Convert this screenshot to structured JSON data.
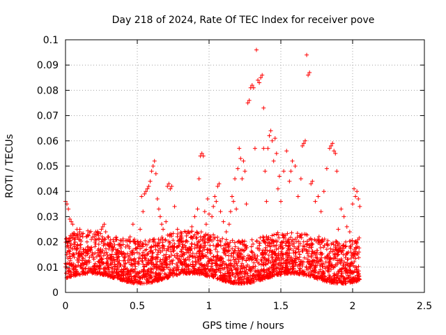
{
  "chart_data": {
    "type": "scatter",
    "title": "Day 218 of 2024, Rate Of TEC Index for receiver pove",
    "xlabel": "GPS time / hours",
    "ylabel": "ROTI / TECUs",
    "xlim": [
      0,
      2.5
    ],
    "ylim": [
      0,
      0.1
    ],
    "xticks": [
      "0",
      "0.5",
      "1",
      "1.5",
      "2",
      "2.5"
    ],
    "yticks": [
      "0",
      "0.01",
      "0.02",
      "0.03",
      "0.04",
      "0.05",
      "0.06",
      "0.07",
      "0.08",
      "0.09",
      "0.1"
    ],
    "grid": true,
    "marker": "plus",
    "color": "#ff0000",
    "series": [
      {
        "points": [
          [
            0.0,
            0.036
          ],
          [
            0.01,
            0.035
          ],
          [
            0.01,
            0.02
          ],
          [
            0.02,
            0.018
          ],
          [
            0.02,
            0.033
          ],
          [
            0.03,
            0.029
          ],
          [
            0.04,
            0.028
          ],
          [
            0.05,
            0.027
          ],
          [
            0.06,
            0.021
          ],
          [
            0.08,
            0.025
          ],
          [
            0.1,
            0.025
          ],
          [
            0.12,
            0.022
          ],
          [
            0.15,
            0.02
          ],
          [
            0.18,
            0.021
          ],
          [
            0.2,
            0.022
          ],
          [
            0.22,
            0.023
          ],
          [
            0.25,
            0.025
          ],
          [
            0.26,
            0.026
          ],
          [
            0.27,
            0.027
          ],
          [
            0.28,
            0.024
          ],
          [
            0.3,
            0.022
          ],
          [
            0.32,
            0.018
          ],
          [
            0.35,
            0.017
          ],
          [
            0.38,
            0.019
          ],
          [
            0.42,
            0.018
          ],
          [
            0.45,
            0.022
          ],
          [
            0.47,
            0.027
          ],
          [
            0.48,
            0.021
          ],
          [
            0.5,
            0.02
          ],
          [
            0.52,
            0.025
          ],
          [
            0.53,
            0.038
          ],
          [
            0.54,
            0.032
          ],
          [
            0.55,
            0.039
          ],
          [
            0.56,
            0.04
          ],
          [
            0.57,
            0.041
          ],
          [
            0.58,
            0.042
          ],
          [
            0.59,
            0.044
          ],
          [
            0.6,
            0.048
          ],
          [
            0.61,
            0.05
          ],
          [
            0.62,
            0.052
          ],
          [
            0.63,
            0.047
          ],
          [
            0.64,
            0.037
          ],
          [
            0.65,
            0.033
          ],
          [
            0.66,
            0.03
          ],
          [
            0.67,
            0.027
          ],
          [
            0.68,
            0.025
          ],
          [
            0.7,
            0.028
          ],
          [
            0.71,
            0.042
          ],
          [
            0.72,
            0.043
          ],
          [
            0.73,
            0.041
          ],
          [
            0.74,
            0.042
          ],
          [
            0.76,
            0.034
          ],
          [
            0.78,
            0.025
          ],
          [
            0.8,
            0.022
          ],
          [
            0.82,
            0.02
          ],
          [
            0.85,
            0.024
          ],
          [
            0.88,
            0.026
          ],
          [
            0.9,
            0.03
          ],
          [
            0.92,
            0.033
          ],
          [
            0.93,
            0.045
          ],
          [
            0.94,
            0.054
          ],
          [
            0.95,
            0.055
          ],
          [
            0.96,
            0.054
          ],
          [
            0.97,
            0.032
          ],
          [
            0.98,
            0.027
          ],
          [
            0.99,
            0.037
          ],
          [
            1.0,
            0.031
          ],
          [
            1.02,
            0.03
          ],
          [
            1.03,
            0.034
          ],
          [
            1.04,
            0.038
          ],
          [
            1.05,
            0.036
          ],
          [
            1.06,
            0.042
          ],
          [
            1.07,
            0.043
          ],
          [
            1.08,
            0.032
          ],
          [
            1.1,
            0.028
          ],
          [
            1.12,
            0.024
          ],
          [
            1.14,
            0.027
          ],
          [
            1.15,
            0.032
          ],
          [
            1.16,
            0.038
          ],
          [
            1.17,
            0.036
          ],
          [
            1.18,
            0.045
          ],
          [
            1.19,
            0.033
          ],
          [
            1.2,
            0.049
          ],
          [
            1.21,
            0.057
          ],
          [
            1.22,
            0.053
          ],
          [
            1.23,
            0.045
          ],
          [
            1.24,
            0.052
          ],
          [
            1.25,
            0.048
          ],
          [
            1.26,
            0.035
          ],
          [
            1.27,
            0.075
          ],
          [
            1.28,
            0.076
          ],
          [
            1.29,
            0.081
          ],
          [
            1.3,
            0.082
          ],
          [
            1.31,
            0.081
          ],
          [
            1.32,
            0.057
          ],
          [
            1.33,
            0.096
          ],
          [
            1.34,
            0.084
          ],
          [
            1.35,
            0.083
          ],
          [
            1.36,
            0.085
          ],
          [
            1.37,
            0.086
          ],
          [
            1.38,
            0.073
          ],
          [
            1.38,
            0.057
          ],
          [
            1.39,
            0.048
          ],
          [
            1.4,
            0.036
          ],
          [
            1.41,
            0.057
          ],
          [
            1.42,
            0.062
          ],
          [
            1.43,
            0.064
          ],
          [
            1.44,
            0.06
          ],
          [
            1.45,
            0.052
          ],
          [
            1.46,
            0.061
          ],
          [
            1.47,
            0.055
          ],
          [
            1.48,
            0.041
          ],
          [
            1.49,
            0.046
          ],
          [
            1.5,
            0.036
          ],
          [
            1.52,
            0.048
          ],
          [
            1.54,
            0.056
          ],
          [
            1.56,
            0.044
          ],
          [
            1.57,
            0.048
          ],
          [
            1.58,
            0.052
          ],
          [
            1.6,
            0.05
          ],
          [
            1.62,
            0.038
          ],
          [
            1.64,
            0.045
          ],
          [
            1.65,
            0.058
          ],
          [
            1.66,
            0.059
          ],
          [
            1.67,
            0.06
          ],
          [
            1.68,
            0.094
          ],
          [
            1.69,
            0.086
          ],
          [
            1.7,
            0.087
          ],
          [
            1.71,
            0.043
          ],
          [
            1.72,
            0.044
          ],
          [
            1.74,
            0.036
          ],
          [
            1.76,
            0.038
          ],
          [
            1.78,
            0.032
          ],
          [
            1.8,
            0.04
          ],
          [
            1.82,
            0.049
          ],
          [
            1.84,
            0.057
          ],
          [
            1.85,
            0.058
          ],
          [
            1.86,
            0.059
          ],
          [
            1.87,
            0.056
          ],
          [
            1.88,
            0.055
          ],
          [
            1.89,
            0.048
          ],
          [
            1.9,
            0.025
          ],
          [
            1.92,
            0.033
          ],
          [
            1.94,
            0.03
          ],
          [
            1.96,
            0.026
          ],
          [
            1.98,
            0.024
          ],
          [
            2.0,
            0.035
          ],
          [
            2.01,
            0.041
          ],
          [
            2.02,
            0.038
          ],
          [
            2.03,
            0.04
          ],
          [
            2.04,
            0.037
          ],
          [
            2.05,
            0.034
          ]
        ]
      }
    ]
  }
}
